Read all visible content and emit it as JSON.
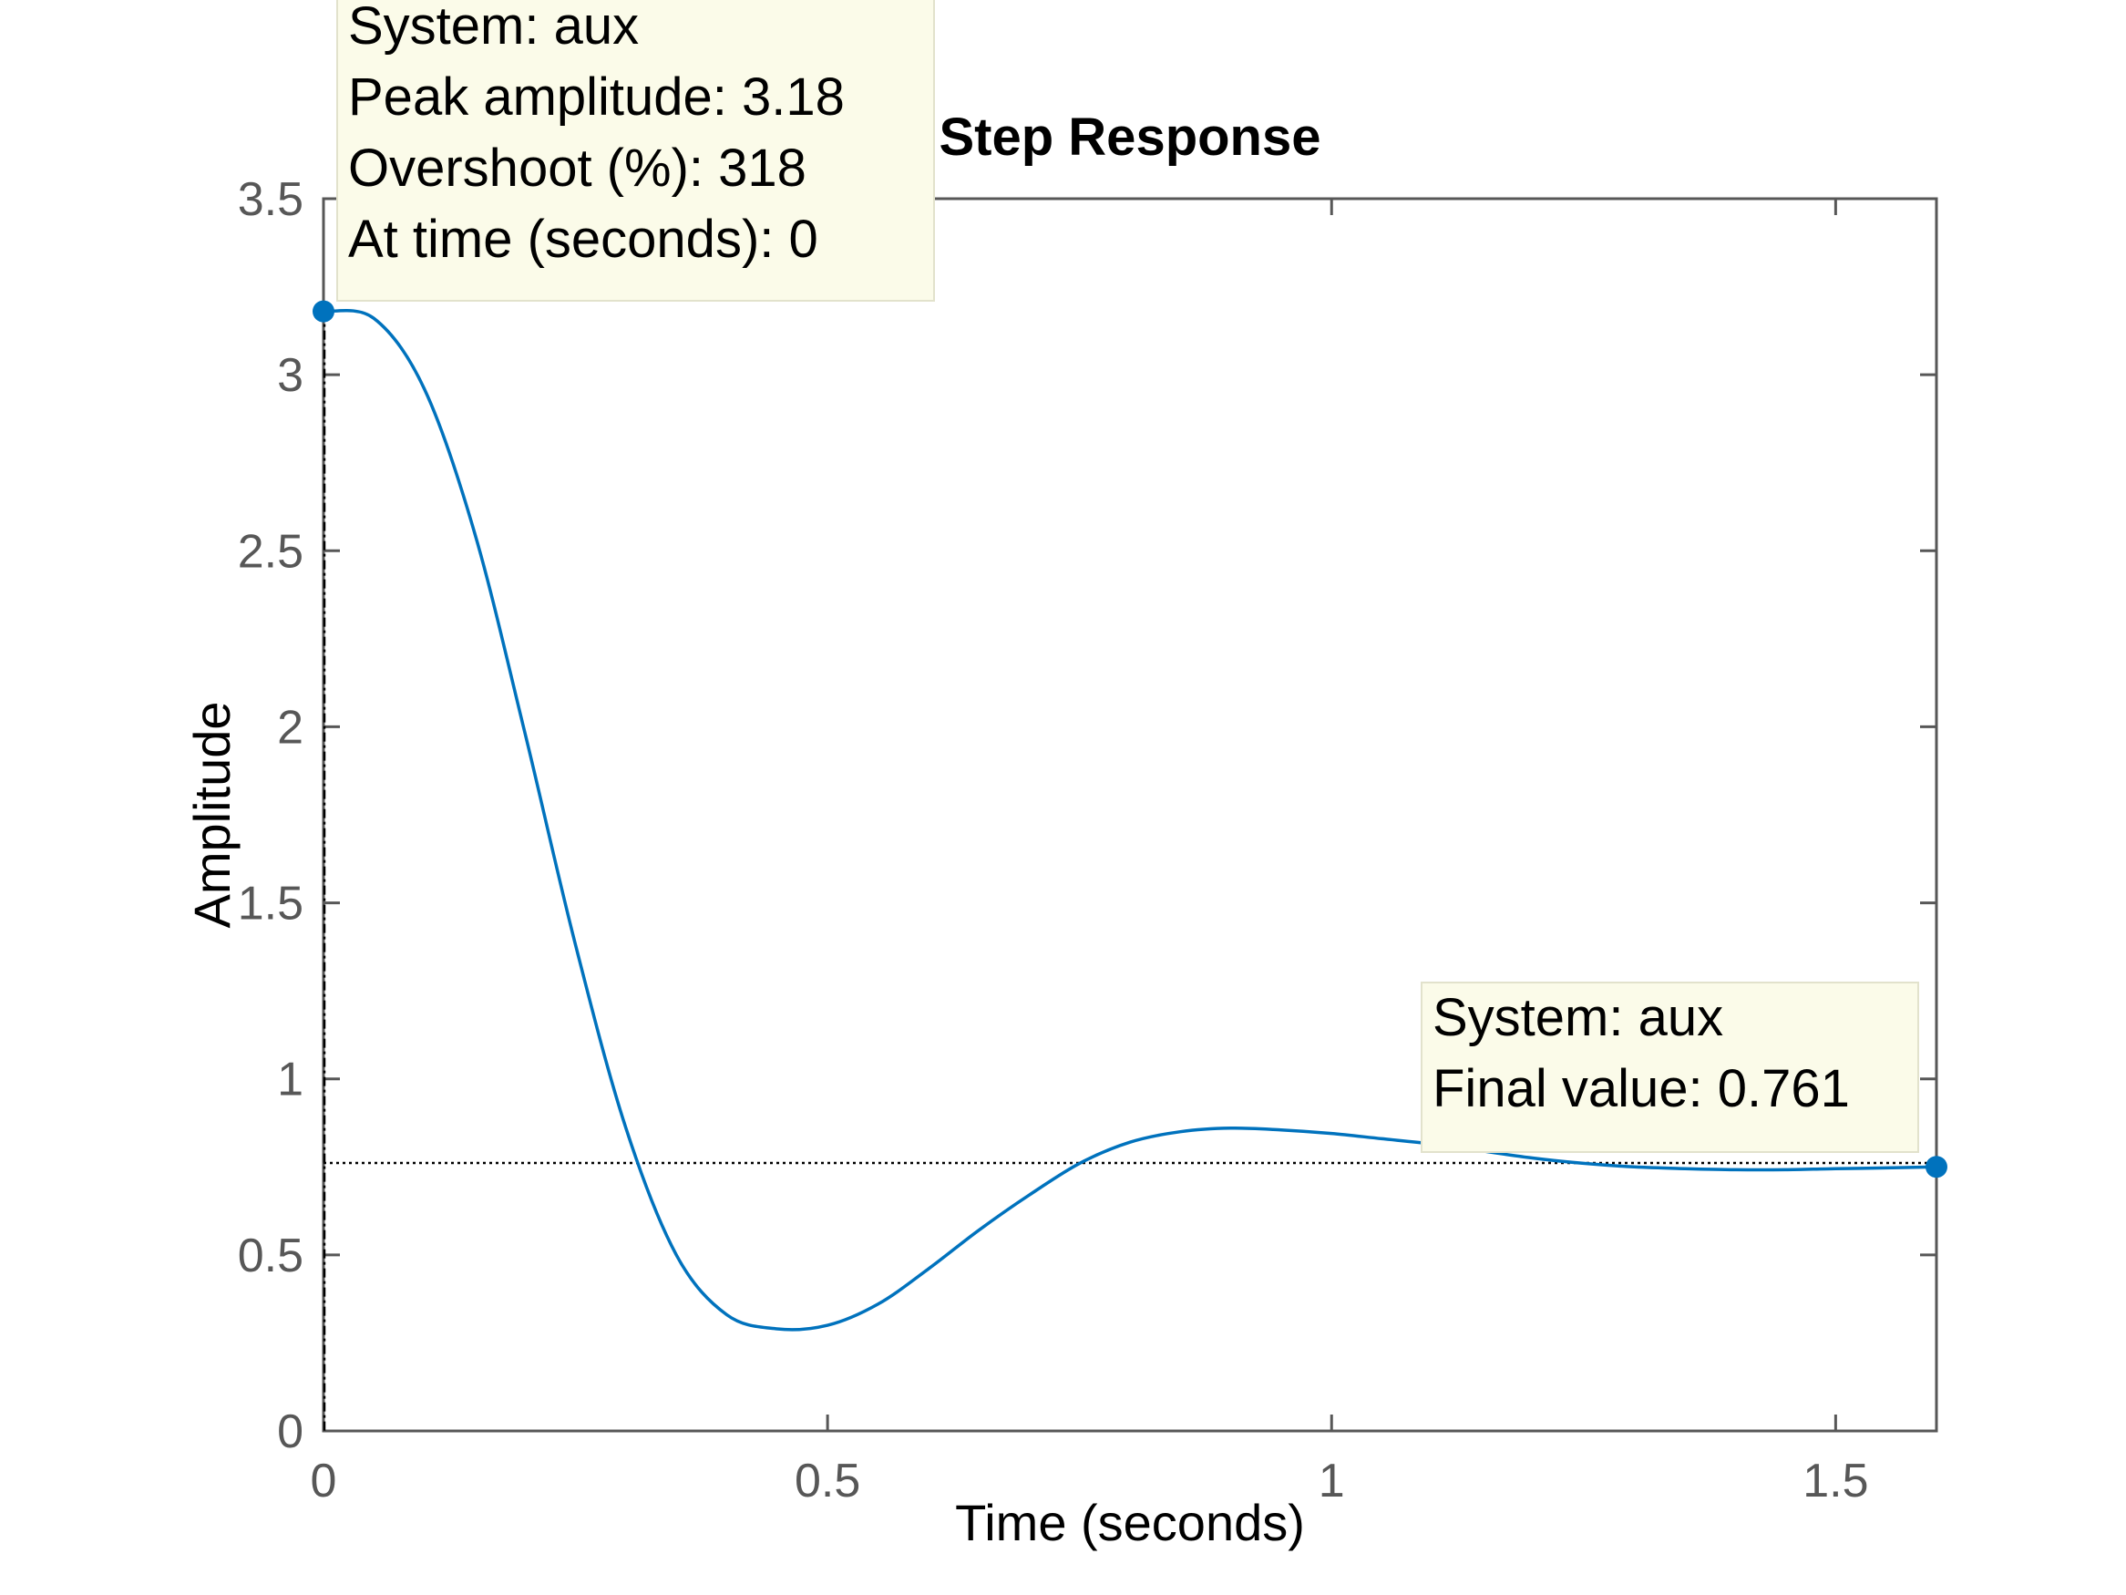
{
  "chart_data": {
    "type": "line",
    "title": "Step Response",
    "xlabel": "Time (seconds)",
    "ylabel": "Amplitude",
    "xlim": [
      0,
      1.6
    ],
    "ylim": [
      0,
      3.5
    ],
    "x_ticks": [
      "0",
      "0.5",
      "1",
      "1.5"
    ],
    "y_ticks": [
      "0",
      "0.5",
      "1",
      "1.5",
      "2",
      "2.5",
      "3",
      "3.5"
    ],
    "grid": false,
    "series": [
      {
        "color": "#0072BD",
        "x": [
          0,
          0.05,
          0.1,
          0.15,
          0.2,
          0.25,
          0.3,
          0.35,
          0.4,
          0.45,
          0.5,
          0.55,
          0.6,
          0.65,
          0.7,
          0.75,
          0.8,
          0.85,
          0.9,
          0.95,
          1.0,
          1.05,
          1.1,
          1.15,
          1.2,
          1.25,
          1.3,
          1.35,
          1.4,
          1.45,
          1.5,
          1.55,
          1.6
        ],
        "y": [
          3.18,
          3.16,
          2.96,
          2.55,
          1.98,
          1.38,
          0.86,
          0.5,
          0.33,
          0.29,
          0.3,
          0.36,
          0.46,
          0.57,
          0.67,
          0.76,
          0.82,
          0.85,
          0.86,
          0.855,
          0.845,
          0.83,
          0.815,
          0.795,
          0.775,
          0.76,
          0.75,
          0.745,
          0.742,
          0.742,
          0.745,
          0.747,
          0.75
        ]
      }
    ],
    "final_value_line": 0.761,
    "line_colors": {
      "response": "#0072BD",
      "reference": "#000000",
      "axes": "#575757"
    },
    "datatips": [
      {
        "x": 0,
        "y": 3.18,
        "lines": [
          "System: aux",
          "Peak amplitude: 3.18",
          "Overshoot (%): 318",
          "At time (seconds): 0"
        ]
      },
      {
        "x": 1.6,
        "y": 0.75,
        "lines": [
          "System: aux",
          "Final value: 0.761"
        ]
      }
    ],
    "datatip_background": "#FBFBE9"
  }
}
